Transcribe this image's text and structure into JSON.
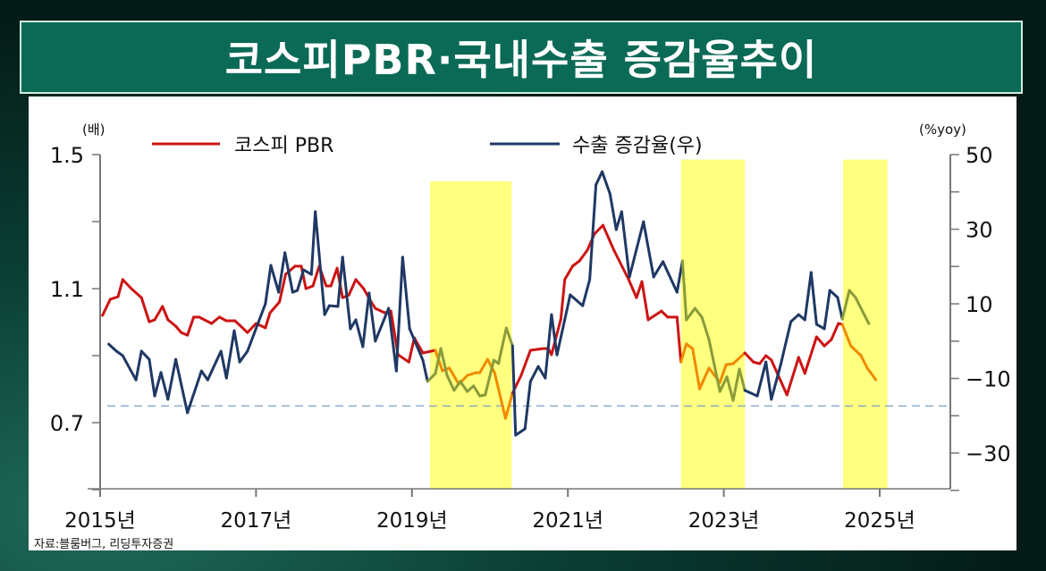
{
  "title": "코스피PBR·국내수출 증감율추이",
  "source": "자료:블룸버그, 리딩투자증권",
  "chart_data": {
    "type": "line",
    "title": "코스피PBR·국내수출 증감율추이",
    "left_axis": {
      "unit": "(배)",
      "range": [
        0.5,
        1.5
      ],
      "ticks": [
        1.5,
        1.3,
        1.1,
        0.9,
        0.7,
        0.5
      ],
      "tick_labels": [
        "1.5",
        "1.1",
        "0.7"
      ],
      "label_values": [
        1.5,
        1.1,
        0.7
      ]
    },
    "right_axis": {
      "unit": "(%yoy)",
      "range": [
        -40,
        50
      ],
      "ticks": [
        50,
        40,
        30,
        20,
        10,
        0,
        -10,
        -20,
        -30,
        -40
      ],
      "tick_labels": [
        "50",
        "30",
        "10",
        "−10",
        "−30"
      ],
      "label_values": [
        50,
        30,
        10,
        -10,
        -30
      ]
    },
    "x_axis": {
      "range": [
        2015,
        2025.9
      ],
      "tick_years": [
        2015,
        2017,
        2019,
        2021,
        2023,
        2025
      ],
      "tick_labels": [
        "2015년",
        "2017년",
        "2019년",
        "2021년",
        "2023년",
        "2025년"
      ]
    },
    "legend": {
      "placement": "top",
      "entries": [
        "코스피 PBR",
        "수출 증감율(우)"
      ]
    },
    "reference_line": {
      "axis": "left",
      "value": 0.75,
      "style": "dashed"
    },
    "highlight_bands": [
      {
        "from": 2019.23,
        "to": 2020.28,
        "top": 1.42
      },
      {
        "from": 2022.45,
        "to": 2023.27,
        "top": 1.485
      },
      {
        "from": 2024.53,
        "to": 2025.1,
        "top": 1.485
      }
    ],
    "series": [
      {
        "name": "코스피 PBR",
        "axis": "left",
        "color": "#cc1414",
        "band_color": "#f08a00",
        "points": [
          [
            2015.03,
            1.02
          ],
          [
            2015.13,
            1.068
          ],
          [
            2015.23,
            1.076
          ],
          [
            2015.29,
            1.127
          ],
          [
            2015.4,
            1.1
          ],
          [
            2015.53,
            1.073
          ],
          [
            2015.63,
            1.001
          ],
          [
            2015.7,
            1.007
          ],
          [
            2015.8,
            1.047
          ],
          [
            2015.87,
            1.007
          ],
          [
            2015.97,
            0.988
          ],
          [
            2016.04,
            0.969
          ],
          [
            2016.12,
            0.961
          ],
          [
            2016.2,
            1.015
          ],
          [
            2016.27,
            1.015
          ],
          [
            2016.43,
            0.996
          ],
          [
            2016.53,
            1.015
          ],
          [
            2016.62,
            1.004
          ],
          [
            2016.73,
            1.004
          ],
          [
            2016.89,
            0.969
          ],
          [
            2017.0,
            0.996
          ],
          [
            2017.12,
            0.983
          ],
          [
            2017.18,
            1.028
          ],
          [
            2017.3,
            1.06
          ],
          [
            2017.38,
            1.143
          ],
          [
            2017.5,
            1.167
          ],
          [
            2017.58,
            1.167
          ],
          [
            2017.64,
            1.1
          ],
          [
            2017.73,
            1.108
          ],
          [
            2017.81,
            1.167
          ],
          [
            2017.9,
            1.108
          ],
          [
            2017.96,
            1.108
          ],
          [
            2018.04,
            1.161
          ],
          [
            2018.11,
            1.073
          ],
          [
            2018.19,
            1.081
          ],
          [
            2018.28,
            1.127
          ],
          [
            2018.38,
            1.1
          ],
          [
            2018.47,
            1.063
          ],
          [
            2018.53,
            1.041
          ],
          [
            2018.65,
            1.028
          ],
          [
            2018.73,
            1.033
          ],
          [
            2018.82,
            0.903
          ],
          [
            2018.96,
            0.881
          ],
          [
            2019.03,
            0.953
          ],
          [
            2019.14,
            0.908
          ],
          [
            2019.3,
            0.916
          ],
          [
            2019.39,
            0.855
          ],
          [
            2019.48,
            0.863
          ],
          [
            2019.6,
            0.815
          ],
          [
            2019.71,
            0.841
          ],
          [
            2019.82,
            0.849
          ],
          [
            2019.87,
            0.849
          ],
          [
            2019.97,
            0.889
          ],
          [
            2020.06,
            0.849
          ],
          [
            2020.2,
            0.713
          ],
          [
            2020.29,
            0.788
          ],
          [
            2020.4,
            0.841
          ],
          [
            2020.52,
            0.916
          ],
          [
            2020.68,
            0.921
          ],
          [
            2020.75,
            0.921
          ],
          [
            2020.79,
            0.903
          ],
          [
            2020.91,
            1.009
          ],
          [
            2020.96,
            1.127
          ],
          [
            2021.06,
            1.167
          ],
          [
            2021.15,
            1.183
          ],
          [
            2021.25,
            1.215
          ],
          [
            2021.34,
            1.263
          ],
          [
            2021.45,
            1.289
          ],
          [
            2021.59,
            1.215
          ],
          [
            2021.78,
            1.127
          ],
          [
            2021.88,
            1.073
          ],
          [
            2021.95,
            1.121
          ],
          [
            2022.03,
            1.007
          ],
          [
            2022.2,
            1.033
          ],
          [
            2022.28,
            1.015
          ],
          [
            2022.4,
            1.015
          ],
          [
            2022.45,
            0.881
          ],
          [
            2022.52,
            0.935
          ],
          [
            2022.6,
            0.921
          ],
          [
            2022.69,
            0.801
          ],
          [
            2022.81,
            0.863
          ],
          [
            2022.95,
            0.82
          ],
          [
            2023.03,
            0.873
          ],
          [
            2023.12,
            0.876
          ],
          [
            2023.27,
            0.908
          ],
          [
            2023.38,
            0.881
          ],
          [
            2023.46,
            0.876
          ],
          [
            2023.54,
            0.9
          ],
          [
            2023.61,
            0.887
          ],
          [
            2023.81,
            0.783
          ],
          [
            2023.96,
            0.895
          ],
          [
            2024.04,
            0.847
          ],
          [
            2024.19,
            0.956
          ],
          [
            2024.29,
            0.929
          ],
          [
            2024.38,
            0.948
          ],
          [
            2024.47,
            0.996
          ],
          [
            2024.52,
            0.993
          ],
          [
            2024.63,
            0.929
          ],
          [
            2024.76,
            0.9
          ],
          [
            2024.84,
            0.863
          ],
          [
            2024.95,
            0.828
          ]
        ]
      },
      {
        "name": "수출 증감율(우)",
        "axis": "right",
        "color": "#1f3864",
        "band_color": "#8a9b3a",
        "points": [
          [
            2015.11,
            -0.8
          ],
          [
            2015.21,
            -2.7
          ],
          [
            2015.29,
            -3.9
          ],
          [
            2015.46,
            -10.4
          ],
          [
            2015.53,
            -2.7
          ],
          [
            2015.63,
            -4.9
          ],
          [
            2015.7,
            -14.7
          ],
          [
            2015.78,
            -8.4
          ],
          [
            2015.87,
            -15.6
          ],
          [
            2015.97,
            -4.9
          ],
          [
            2016.12,
            -19.2
          ],
          [
            2016.3,
            -8.0
          ],
          [
            2016.38,
            -10.4
          ],
          [
            2016.55,
            -2.7
          ],
          [
            2016.62,
            -9.9
          ],
          [
            2016.72,
            2.8
          ],
          [
            2016.79,
            -5.6
          ],
          [
            2016.89,
            -2.7
          ],
          [
            2017.12,
            10.0
          ],
          [
            2017.19,
            20.3
          ],
          [
            2017.29,
            13.1
          ],
          [
            2017.37,
            23.7
          ],
          [
            2017.47,
            13.1
          ],
          [
            2017.53,
            13.6
          ],
          [
            2017.61,
            19.1
          ],
          [
            2017.71,
            17.9
          ],
          [
            2017.76,
            34.7
          ],
          [
            2017.88,
            7.1
          ],
          [
            2017.94,
            9.5
          ],
          [
            2018.05,
            9.3
          ],
          [
            2018.11,
            22.5
          ],
          [
            2018.21,
            3.3
          ],
          [
            2018.28,
            5.7
          ],
          [
            2018.37,
            -1.5
          ],
          [
            2018.45,
            12.9
          ],
          [
            2018.53,
            0.0
          ],
          [
            2018.7,
            8.8
          ],
          [
            2018.8,
            -8.0
          ],
          [
            2018.88,
            22.5
          ],
          [
            2018.97,
            3.3
          ],
          [
            2019.14,
            -5.1
          ],
          [
            2019.2,
            -10.8
          ],
          [
            2019.3,
            -8.7
          ],
          [
            2019.37,
            -2.0
          ],
          [
            2019.45,
            -9.2
          ],
          [
            2019.54,
            -13.2
          ],
          [
            2019.62,
            -10.8
          ],
          [
            2019.71,
            -13.5
          ],
          [
            2019.79,
            -12.0
          ],
          [
            2019.87,
            -14.7
          ],
          [
            2019.94,
            -14.4
          ],
          [
            2020.05,
            -5.1
          ],
          [
            2020.11,
            -6.0
          ],
          [
            2020.21,
            3.5
          ],
          [
            2020.29,
            -1.3
          ],
          [
            2020.33,
            -25.2
          ],
          [
            2020.45,
            -23.5
          ],
          [
            2020.52,
            -10.8
          ],
          [
            2020.62,
            -6.8
          ],
          [
            2020.71,
            -9.9
          ],
          [
            2020.79,
            7.1
          ],
          [
            2020.86,
            -3.7
          ],
          [
            2021.03,
            12.4
          ],
          [
            2021.19,
            9.5
          ],
          [
            2021.28,
            16.5
          ],
          [
            2021.36,
            41.9
          ],
          [
            2021.44,
            45.4
          ],
          [
            2021.54,
            39.5
          ],
          [
            2021.62,
            29.9
          ],
          [
            2021.69,
            34.7
          ],
          [
            2021.79,
            17.2
          ],
          [
            2021.97,
            32.0
          ],
          [
            2022.1,
            17.2
          ],
          [
            2022.22,
            21.3
          ],
          [
            2022.4,
            13.1
          ],
          [
            2022.47,
            21.5
          ],
          [
            2022.52,
            5.7
          ],
          [
            2022.63,
            8.8
          ],
          [
            2022.72,
            6.4
          ],
          [
            2022.81,
            0.4
          ],
          [
            2022.95,
            -13.5
          ],
          [
            2023.04,
            -9.6
          ],
          [
            2023.12,
            -15.9
          ],
          [
            2023.2,
            -7.5
          ],
          [
            2023.27,
            -13.2
          ],
          [
            2023.43,
            -14.7
          ],
          [
            2023.54,
            -5.6
          ],
          [
            2023.61,
            -15.6
          ],
          [
            2023.73,
            -6.3
          ],
          [
            2023.86,
            5.2
          ],
          [
            2023.96,
            7.1
          ],
          [
            2024.04,
            5.7
          ],
          [
            2024.12,
            18.4
          ],
          [
            2024.19,
            4.5
          ],
          [
            2024.29,
            3.3
          ],
          [
            2024.36,
            13.6
          ],
          [
            2024.46,
            11.7
          ],
          [
            2024.52,
            5.9
          ],
          [
            2024.61,
            13.6
          ],
          [
            2024.69,
            11.7
          ],
          [
            2024.86,
            4.7
          ]
        ]
      }
    ]
  }
}
